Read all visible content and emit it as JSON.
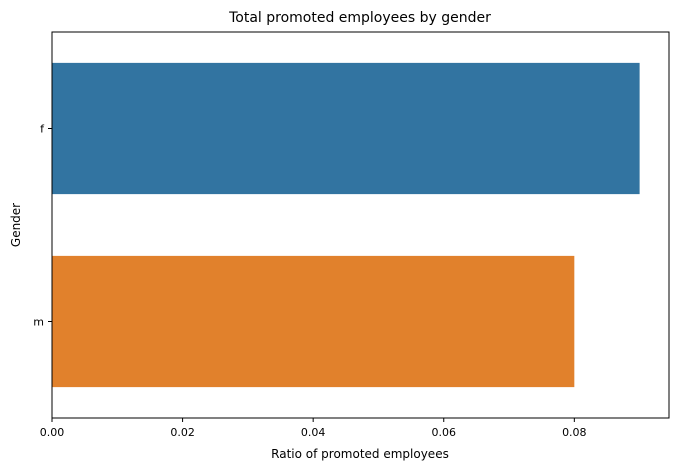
{
  "chart_data": {
    "type": "bar",
    "orientation": "horizontal",
    "title": "Total promoted employees by gender",
    "xlabel": "Ratio of promoted employees",
    "ylabel": "Gender",
    "categories": [
      "f",
      "m"
    ],
    "values": [
      0.09,
      0.08
    ],
    "xlim": [
      0,
      0.0945
    ],
    "x_ticks": [
      "0.00",
      "0.02",
      "0.04",
      "0.06",
      "0.08"
    ],
    "x_tick_values": [
      0,
      0.02,
      0.04,
      0.06,
      0.08
    ],
    "colors": [
      "#3274a1",
      "#e1812c"
    ],
    "grid": false,
    "legend": "none"
  }
}
